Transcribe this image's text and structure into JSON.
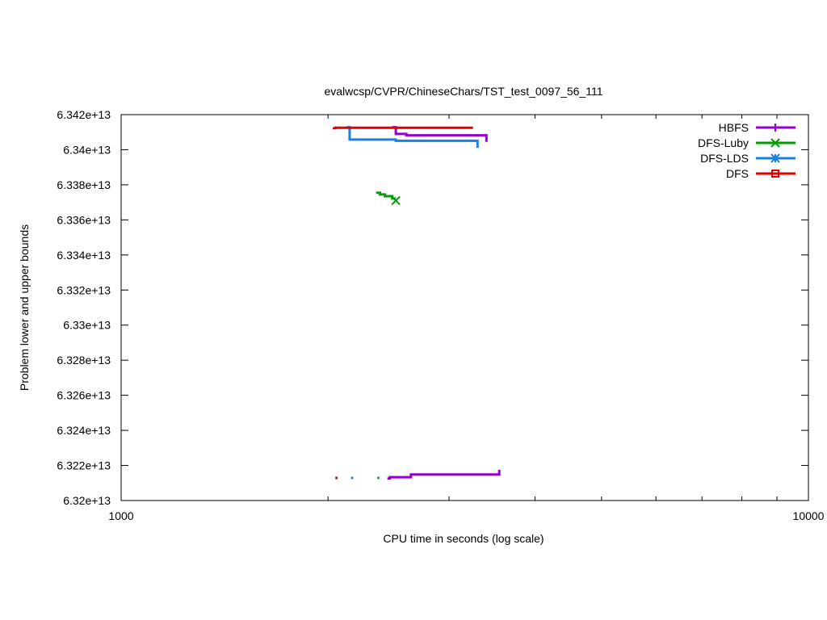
{
  "chart_data": {
    "type": "line",
    "title": "evalwcsp/CVPR/ChineseChars/TST_test_0097_56_111",
    "xlabel": "CPU time in seconds (log scale)",
    "ylabel": "Problem lower and upper bounds",
    "x_scale": "log",
    "xlim": [
      1000,
      10000
    ],
    "ylim": [
      63200000000000,
      63420000000000
    ],
    "x_ticks": [
      1000,
      10000
    ],
    "x_tick_labels": [
      "1000",
      "10000"
    ],
    "y_ticks": [
      63200000000000,
      63220000000000,
      63240000000000,
      63260000000000,
      63280000000000,
      63300000000000,
      63320000000000,
      63340000000000,
      63360000000000,
      63380000000000,
      63400000000000,
      63420000000000
    ],
    "y_tick_labels": [
      "6.32e+13",
      "6.322e+13",
      "6.324e+13",
      "6.326e+13",
      "6.328e+13",
      "6.33e+13",
      "6.332e+13",
      "6.334e+13",
      "6.336e+13",
      "6.338e+13",
      "6.34e+13",
      "6.342e+13"
    ],
    "grid": false,
    "legend_position": "top-right",
    "series": [
      {
        "name": "HBFS",
        "color": "#9400d3",
        "marker": "plus",
        "upper": [
          [
            2480,
            63412800000000
          ],
          [
            2510,
            63412800000000
          ],
          [
            2510,
            63409000000000
          ],
          [
            2600,
            63409000000000
          ],
          [
            2600,
            63408200000000
          ],
          [
            3400,
            63408200000000
          ],
          [
            3400,
            63404500000000
          ]
        ],
        "lower": [
          [
            2440,
            63212500000000
          ],
          [
            2460,
            63212500000000
          ],
          [
            2460,
            63213300000000
          ],
          [
            2640,
            63213300000000
          ],
          [
            2640,
            63214800000000
          ],
          [
            3550,
            63214800000000
          ],
          [
            3550,
            63217500000000
          ]
        ],
        "marker_points": []
      },
      {
        "name": "DFS-Luby",
        "color": "#009e00",
        "marker": "x",
        "upper": [
          [
            2350,
            63375500000000
          ],
          [
            2380,
            63375500000000
          ],
          [
            2380,
            63374500000000
          ],
          [
            2420,
            63374500000000
          ],
          [
            2420,
            63373500000000
          ],
          [
            2480,
            63373500000000
          ],
          [
            2480,
            63372200000000
          ],
          [
            2510,
            63372200000000
          ]
        ],
        "lower": [
          [
            2360,
            63212900000000
          ],
          [
            2375,
            63212900000000
          ]
        ],
        "marker_points": [
          [
            2510,
            63371000000000
          ]
        ]
      },
      {
        "name": "DFS-LDS",
        "color": "#1a7fe6",
        "marker": "star",
        "upper": [
          [
            2130,
            63412800000000
          ],
          [
            2150,
            63412800000000
          ],
          [
            2150,
            63405800000000
          ],
          [
            2510,
            63405800000000
          ],
          [
            2510,
            63405100000000
          ],
          [
            3300,
            63405100000000
          ],
          [
            3300,
            63401100000000
          ]
        ],
        "lower": [
          [
            2160,
            63212900000000
          ],
          [
            2175,
            63212900000000
          ]
        ],
        "marker_points": []
      },
      {
        "name": "DFS",
        "color": "#e00000",
        "marker": "square",
        "upper": [
          [
            2040,
            63412800000000
          ],
          [
            2040,
            63412300000000
          ],
          [
            2050,
            63412300000000
          ],
          [
            2050,
            63412500000000
          ],
          [
            3250,
            63412500000000
          ]
        ],
        "lower": [
          [
            2050,
            63212900000000
          ],
          [
            2065,
            63212900000000
          ]
        ],
        "marker_points": []
      }
    ]
  }
}
